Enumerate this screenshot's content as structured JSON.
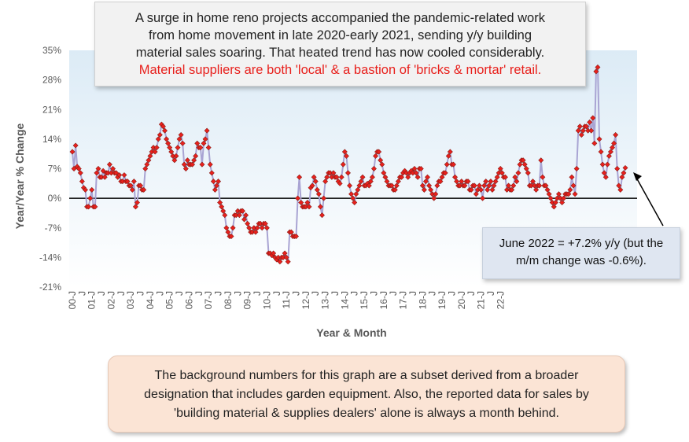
{
  "callout_top": {
    "line1": "A surge in home reno projects accompanied the pandemic-related work",
    "line2": "from home movement in late 2020-early 2021, sending y/y building",
    "line3": "material sales soaring. That heated trend has now cooled considerably.",
    "line4": "Material suppliers are both 'local' & a bastion of 'bricks & mortar' retail."
  },
  "callout_june": {
    "line1": "June 2022 = +7.2% y/y (but the",
    "line2": "m/m change was -0.6%)."
  },
  "note_bottom": {
    "line1": "The background numbers for this graph are a subset derived from a broader",
    "line2": "designation that includes garden equipment. Also, the reported data for sales by",
    "line3": "'building material & supplies dealers' alone is always a month behind."
  },
  "colors": {
    "line": "#a9a4d3",
    "marker": "#e8201c",
    "marker_edge": "#7a1a14",
    "plot_bg_top": "#dcebf6",
    "plot_bg_bottom": "#ffffff",
    "red_text": "#e8201c"
  },
  "chart_data": {
    "type": "line",
    "title": "",
    "xlabel": "Year & Month",
    "ylabel": "Year/Year % Change",
    "ylim": [
      -21,
      35
    ],
    "yticks": [
      -21,
      -14,
      -7,
      0,
      7,
      14,
      21,
      28,
      35
    ],
    "ytick_labels": [
      "-21%",
      "-14%",
      "-7%",
      "0%",
      "7%",
      "14%",
      "21%",
      "28%",
      "35%"
    ],
    "xtick_labels": [
      "00-J",
      "J",
      "01-J",
      "J",
      "02-J",
      "J",
      "03-J",
      "J",
      "04-J",
      "J",
      "05-J",
      "J",
      "06-J",
      "J",
      "07-J",
      "J",
      "08-J",
      "J",
      "09-J",
      "J",
      "10-J",
      "J",
      "11-J",
      "J",
      "12-J",
      "J",
      "13-J",
      "J",
      "14-J",
      "J",
      "15-J",
      "J",
      "16-J",
      "J",
      "17-J",
      "J",
      "18-J",
      "J",
      "19-J",
      "J",
      "20-J",
      "J",
      "21-J",
      "J",
      "22-J"
    ],
    "grid": false,
    "legend": "none",
    "x_start": "2000-01",
    "x_end": "2022-06",
    "series": [
      {
        "values": [
          11,
          7,
          12.5,
          7.5,
          7,
          6,
          4,
          2.5,
          2,
          -2,
          -2,
          0,
          2,
          -2,
          -2,
          6,
          7,
          5,
          5,
          6.5,
          5,
          6,
          6,
          8,
          6,
          7,
          6,
          6,
          5,
          5.5,
          4,
          4,
          5.5,
          4,
          4,
          3,
          3,
          2,
          4,
          -2,
          -1,
          3,
          3,
          2,
          2,
          7,
          8,
          9,
          10,
          11,
          12,
          11,
          12,
          14,
          15,
          17.5,
          17,
          16,
          14,
          13,
          12,
          11,
          10,
          9,
          10,
          12,
          14,
          15,
          13,
          8,
          7,
          9,
          8,
          8,
          8,
          9,
          10,
          13,
          12,
          12,
          8,
          13,
          14,
          16,
          12,
          8,
          6,
          4,
          2,
          3,
          4,
          -1,
          -2,
          -3,
          -4,
          -7,
          -8,
          -9,
          -9,
          -7,
          -4,
          -4,
          -3,
          -4,
          -3,
          -3,
          -5,
          -4,
          -6,
          -7,
          -8,
          -8,
          -7,
          -8,
          -7,
          -6,
          -6,
          -7,
          -6,
          -6,
          -7,
          -13,
          -13,
          -13.5,
          -13,
          -14,
          -14.5,
          -14,
          -15,
          -14,
          -14,
          -13,
          -14,
          -15,
          -8,
          -8,
          -9,
          -9,
          -9,
          0,
          5,
          -1,
          -2,
          -2,
          -2,
          -1,
          -2,
          2.5,
          3,
          5,
          4,
          2,
          1,
          -2,
          -4,
          0,
          4,
          5,
          6,
          6,
          5,
          6,
          5,
          5,
          4,
          3.5,
          5,
          8,
          11,
          10,
          6,
          3,
          1,
          0,
          -1,
          1,
          2,
          3,
          4,
          5,
          3,
          3,
          3.5,
          3,
          4,
          5,
          7,
          10,
          11,
          11,
          9,
          8,
          6,
          5,
          4,
          3,
          3,
          3,
          2,
          2,
          3,
          4,
          5,
          5,
          6,
          6.5,
          6,
          5,
          6,
          6.5,
          6,
          7,
          6,
          5,
          7,
          7,
          3,
          2,
          4,
          5,
          3,
          2,
          1,
          0,
          1,
          3,
          4,
          4,
          5,
          6,
          6,
          8,
          10,
          11,
          8,
          8,
          5,
          4,
          3,
          3,
          4,
          3,
          3,
          4,
          4,
          2,
          2,
          3,
          3,
          1,
          2,
          3,
          2,
          0,
          3,
          4,
          2,
          3,
          4,
          2,
          3,
          4,
          5,
          6,
          7,
          6,
          5,
          5,
          2,
          3,
          2,
          2,
          3,
          5,
          4,
          6,
          8,
          9,
          9,
          8,
          7,
          6,
          3,
          3,
          4,
          3,
          2,
          3,
          3,
          9,
          5,
          3,
          3,
          2,
          1,
          0,
          -1,
          -2,
          -1,
          0,
          1,
          0,
          -1,
          0,
          1,
          1,
          1,
          2,
          5,
          3,
          1,
          7,
          16,
          17,
          15,
          16,
          17,
          17,
          16,
          18,
          16,
          19,
          13,
          30,
          31,
          14,
          11,
          8,
          6,
          5,
          8,
          10,
          11,
          12,
          13,
          15,
          7,
          3,
          2,
          5,
          6,
          7.2
        ]
      }
    ]
  }
}
